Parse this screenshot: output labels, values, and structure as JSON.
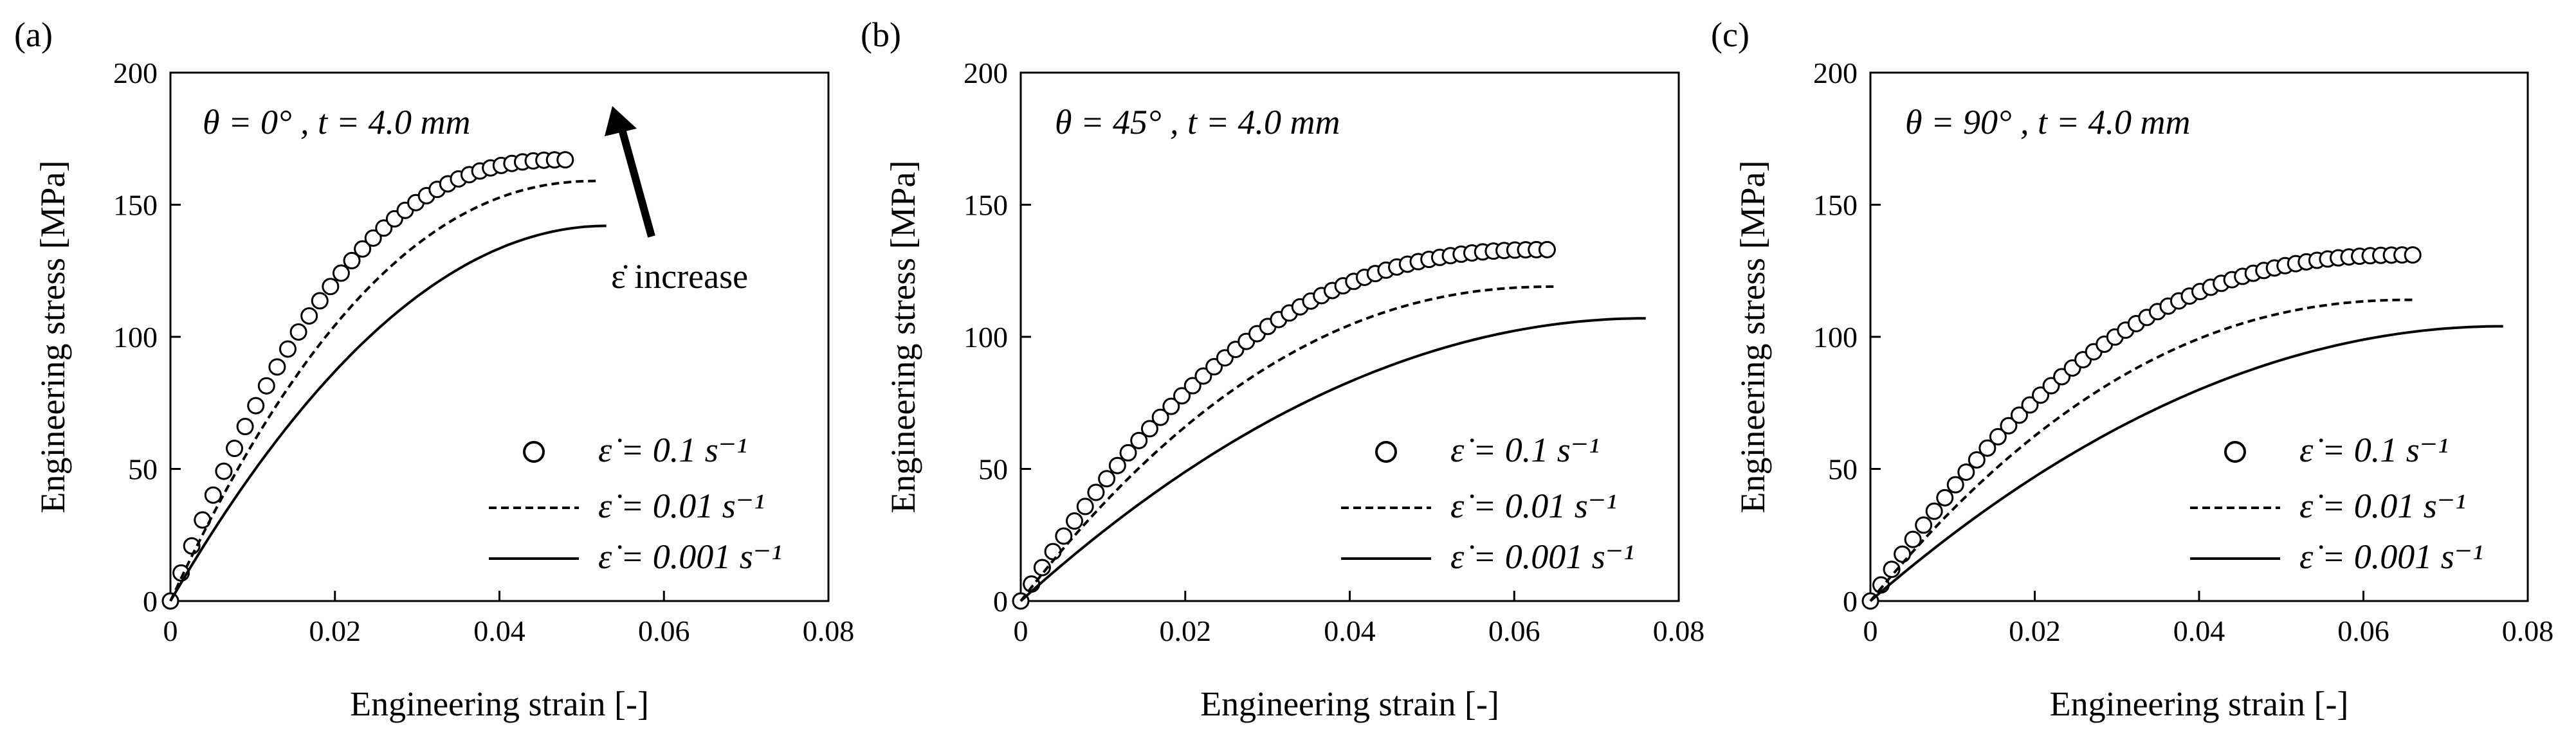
{
  "chart_data": [
    {
      "type": "line",
      "panel_label": "(a)",
      "annotation": "θ = 0° , t = 4.0 mm",
      "arrow_label": "ε̇ increase",
      "xlabel": "Engineering strain [-]",
      "ylabel": "Engineering stress [MPa]",
      "xlim": [
        0,
        0.08
      ],
      "ylim": [
        0,
        200
      ],
      "xticks": [
        "0",
        "0.02",
        "0.04",
        "0.06",
        "0.08"
      ],
      "yticks": [
        "0",
        "50",
        "100",
        "150",
        "200"
      ],
      "legend_position": "bottom-right",
      "series": [
        {
          "name": "ε̇ = 0.1 s⁻¹",
          "style": "circles",
          "x_end": 0.048,
          "y_end": 167
        },
        {
          "name": "ε̇ = 0.01 s⁻¹",
          "style": "dashed",
          "x_end": 0.052,
          "y_end": 159
        },
        {
          "name": "ε̇ = 0.001 s⁻¹",
          "style": "solid",
          "x_end": 0.053,
          "y_end": 142
        }
      ]
    },
    {
      "type": "line",
      "panel_label": "(b)",
      "annotation": "θ = 45° , t = 4.0 mm",
      "xlabel": "Engineering strain [-]",
      "ylabel": "Engineering stress [MPa]",
      "xlim": [
        0,
        0.08
      ],
      "ylim": [
        0,
        200
      ],
      "xticks": [
        "0",
        "0.02",
        "0.04",
        "0.06",
        "0.08"
      ],
      "yticks": [
        "0",
        "50",
        "100",
        "150",
        "200"
      ],
      "legend_position": "bottom-right",
      "series": [
        {
          "name": "ε̇ = 0.1 s⁻¹",
          "style": "circles",
          "x_end": 0.064,
          "y_end": 133
        },
        {
          "name": "ε̇ = 0.01 s⁻¹",
          "style": "dashed",
          "x_end": 0.065,
          "y_end": 119
        },
        {
          "name": "ε̇ = 0.001 s⁻¹",
          "style": "solid",
          "x_end": 0.076,
          "y_end": 107
        }
      ]
    },
    {
      "type": "line",
      "panel_label": "(c)",
      "annotation": "θ = 90° , t = 4.0 mm",
      "xlabel": "Engineering strain [-]",
      "ylabel": "Engineering stress [MPa]",
      "xlim": [
        0,
        0.08
      ],
      "ylim": [
        0,
        200
      ],
      "xticks": [
        "0",
        "0.02",
        "0.04",
        "0.06",
        "0.08"
      ],
      "yticks": [
        "0",
        "50",
        "100",
        "150",
        "200"
      ],
      "legend_position": "bottom-right",
      "series": [
        {
          "name": "ε̇ = 0.1 s⁻¹",
          "style": "circles",
          "x_end": 0.066,
          "y_end": 131
        },
        {
          "name": "ε̇ = 0.01 s⁻¹",
          "style": "dashed",
          "x_end": 0.066,
          "y_end": 114
        },
        {
          "name": "ε̇ = 0.001 s⁻¹",
          "style": "solid",
          "x_end": 0.077,
          "y_end": 104
        }
      ]
    }
  ]
}
